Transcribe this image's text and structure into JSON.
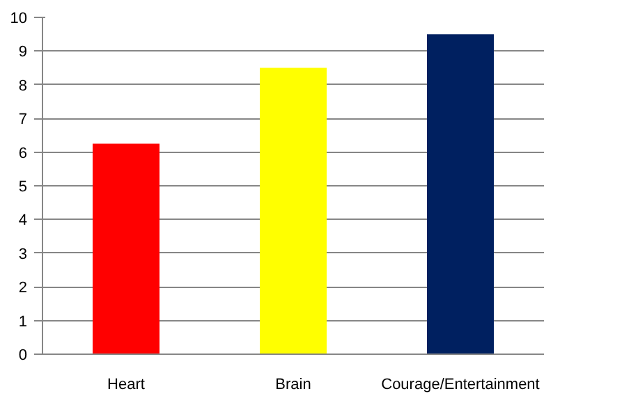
{
  "chart_data": {
    "type": "bar",
    "categories": [
      "Heart",
      "Brain",
      "Courage/Entertainment"
    ],
    "values": [
      6.25,
      8.5,
      9.5
    ],
    "colors": [
      "#ff0000",
      "#ffff00",
      "#002060"
    ],
    "ylim": [
      0,
      10
    ],
    "yticks": [
      0,
      1,
      2,
      3,
      4,
      5,
      6,
      7,
      8,
      9,
      10
    ],
    "grid": "y"
  }
}
